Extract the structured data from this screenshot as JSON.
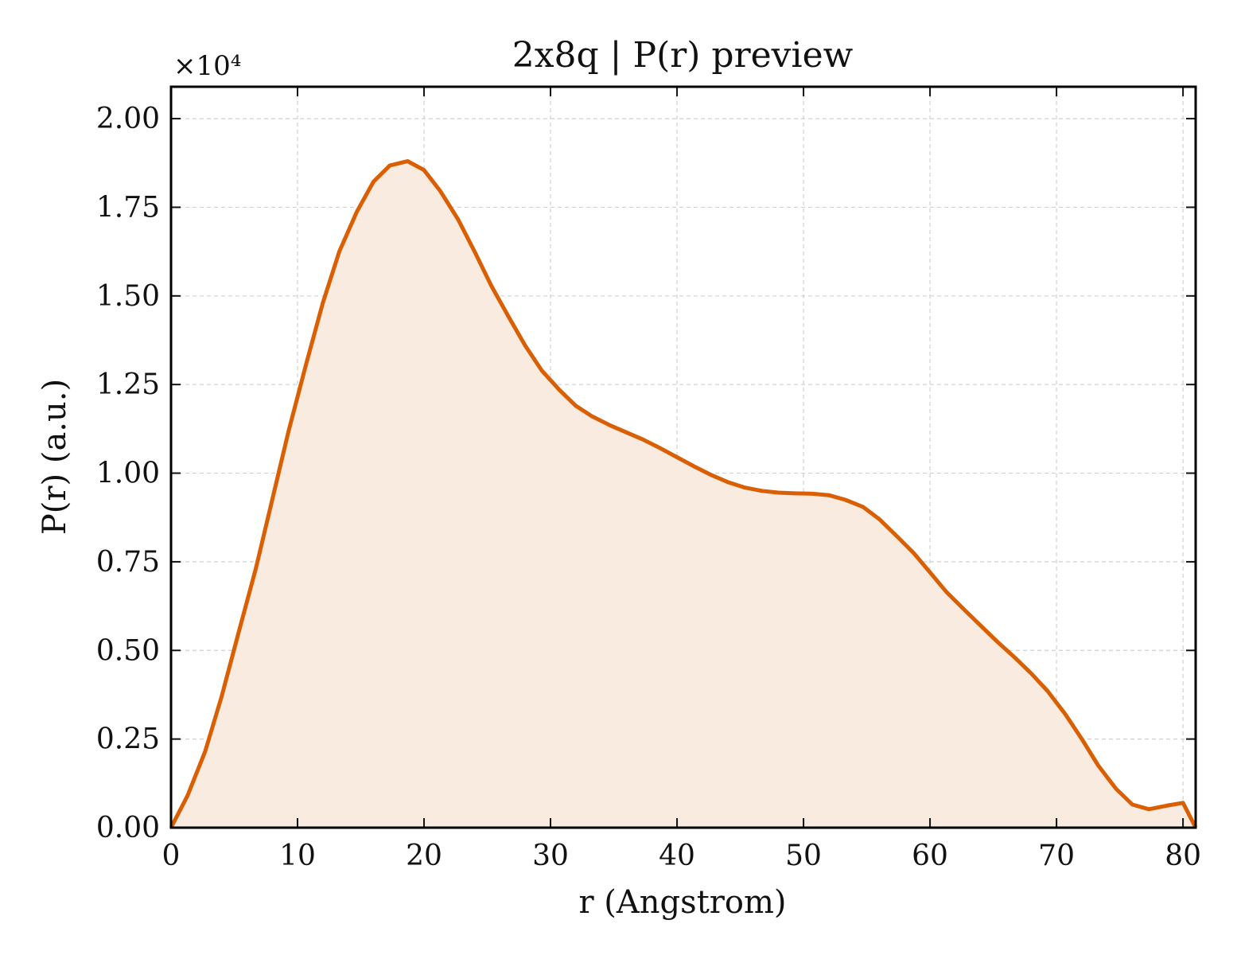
{
  "chart_data": {
    "type": "area",
    "title": "2x8q | P(r) preview",
    "xlabel": "r (Angstrom)",
    "ylabel": "P(r) (a.u.)",
    "y_scale_label": "×10⁴",
    "xlim": [
      0,
      81
    ],
    "ylim": [
      0,
      2.09
    ],
    "x_ticks": [
      0,
      10,
      20,
      30,
      40,
      50,
      60,
      70,
      80
    ],
    "x_tick_labels": [
      "0",
      "10",
      "20",
      "30",
      "40",
      "50",
      "60",
      "70",
      "80"
    ],
    "y_ticks": [
      0,
      0.25,
      0.5,
      0.75,
      1.0,
      1.25,
      1.5,
      1.75,
      2.0
    ],
    "y_tick_labels": [
      "0.00",
      "0.25",
      "0.50",
      "0.75",
      "1.00",
      "1.25",
      "1.50",
      "1.75",
      "2.00"
    ],
    "grid": true,
    "line_color": "#d95f02",
    "fill_color": "#f9ebe0",
    "series": [
      {
        "x": [
          0,
          1.3,
          2.7,
          4.0,
          5.3,
          6.7,
          8.0,
          9.3,
          10.7,
          12.0,
          13.3,
          14.7,
          16.0,
          17.3,
          18.7,
          20.0,
          21.3,
          22.7,
          24.0,
          25.3,
          26.7,
          28.0,
          29.3,
          30.7,
          32.0,
          33.3,
          34.7,
          36.0,
          37.3,
          38.7,
          40.0,
          41.3,
          42.7,
          44.0,
          45.3,
          46.7,
          48.0,
          49.3,
          50.7,
          52.0,
          53.3,
          54.7,
          56.0,
          57.3,
          58.7,
          60.0,
          61.3,
          62.7,
          64.0,
          65.3,
          66.7,
          68.0,
          69.3,
          70.7,
          72.0,
          73.3,
          74.7,
          76.0,
          77.3,
          78.7,
          80.0,
          81.0
        ],
        "y": [
          0,
          0.09,
          0.215,
          0.37,
          0.545,
          0.73,
          0.925,
          1.12,
          1.31,
          1.48,
          1.625,
          1.738,
          1.822,
          1.868,
          1.88,
          1.855,
          1.795,
          1.715,
          1.625,
          1.53,
          1.44,
          1.36,
          1.29,
          1.235,
          1.19,
          1.16,
          1.135,
          1.115,
          1.095,
          1.07,
          1.045,
          1.02,
          0.995,
          0.975,
          0.96,
          0.95,
          0.945,
          0.943,
          0.942,
          0.938,
          0.925,
          0.905,
          0.87,
          0.825,
          0.775,
          0.72,
          0.665,
          0.615,
          0.57,
          0.525,
          0.48,
          0.435,
          0.385,
          0.32,
          0.25,
          0.175,
          0.11,
          0.065,
          0.052,
          0.062,
          0.07,
          0
        ]
      }
    ]
  }
}
